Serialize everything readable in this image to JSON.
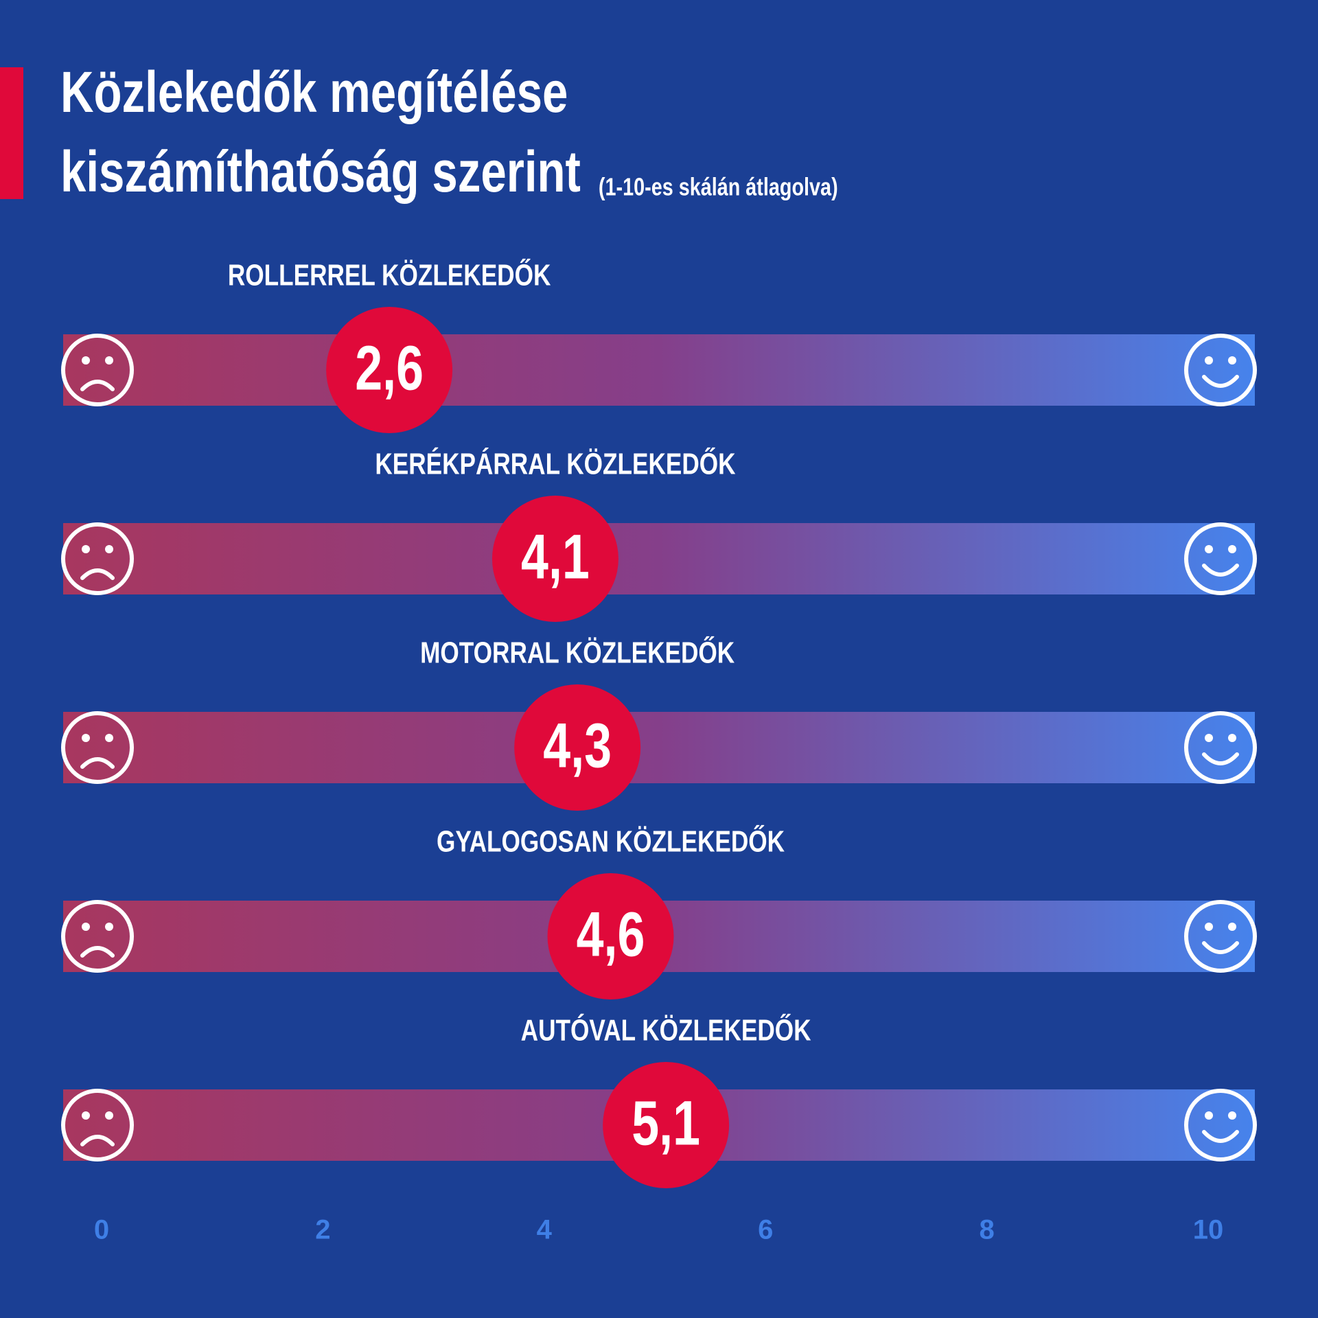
{
  "chart_data": {
    "type": "dot",
    "title": [
      "Közlekedők megítélése",
      "kiszámíthatóság szerint"
    ],
    "subtitle": "(1-10-es skálán átlagolva)",
    "categories": [
      "ROLLERREL  KÖZLEKEDŐK",
      "KERÉKPÁRRAL KÖZLEKEDŐK",
      "MOTORRAL KÖZLEKEDŐK",
      "GYALOGOSAN KÖZLEKEDŐK",
      "AUTÓVAL KÖZLEKEDŐK"
    ],
    "values": [
      2.6,
      4.1,
      4.3,
      4.6,
      5.1
    ],
    "value_labels": [
      "2,6",
      "4,1",
      "4,3",
      "4,6",
      "5,1"
    ],
    "color": "#e0093a",
    "xlim": [
      0,
      10
    ],
    "xticks": [
      0,
      2,
      4,
      6,
      8,
      10
    ]
  }
}
